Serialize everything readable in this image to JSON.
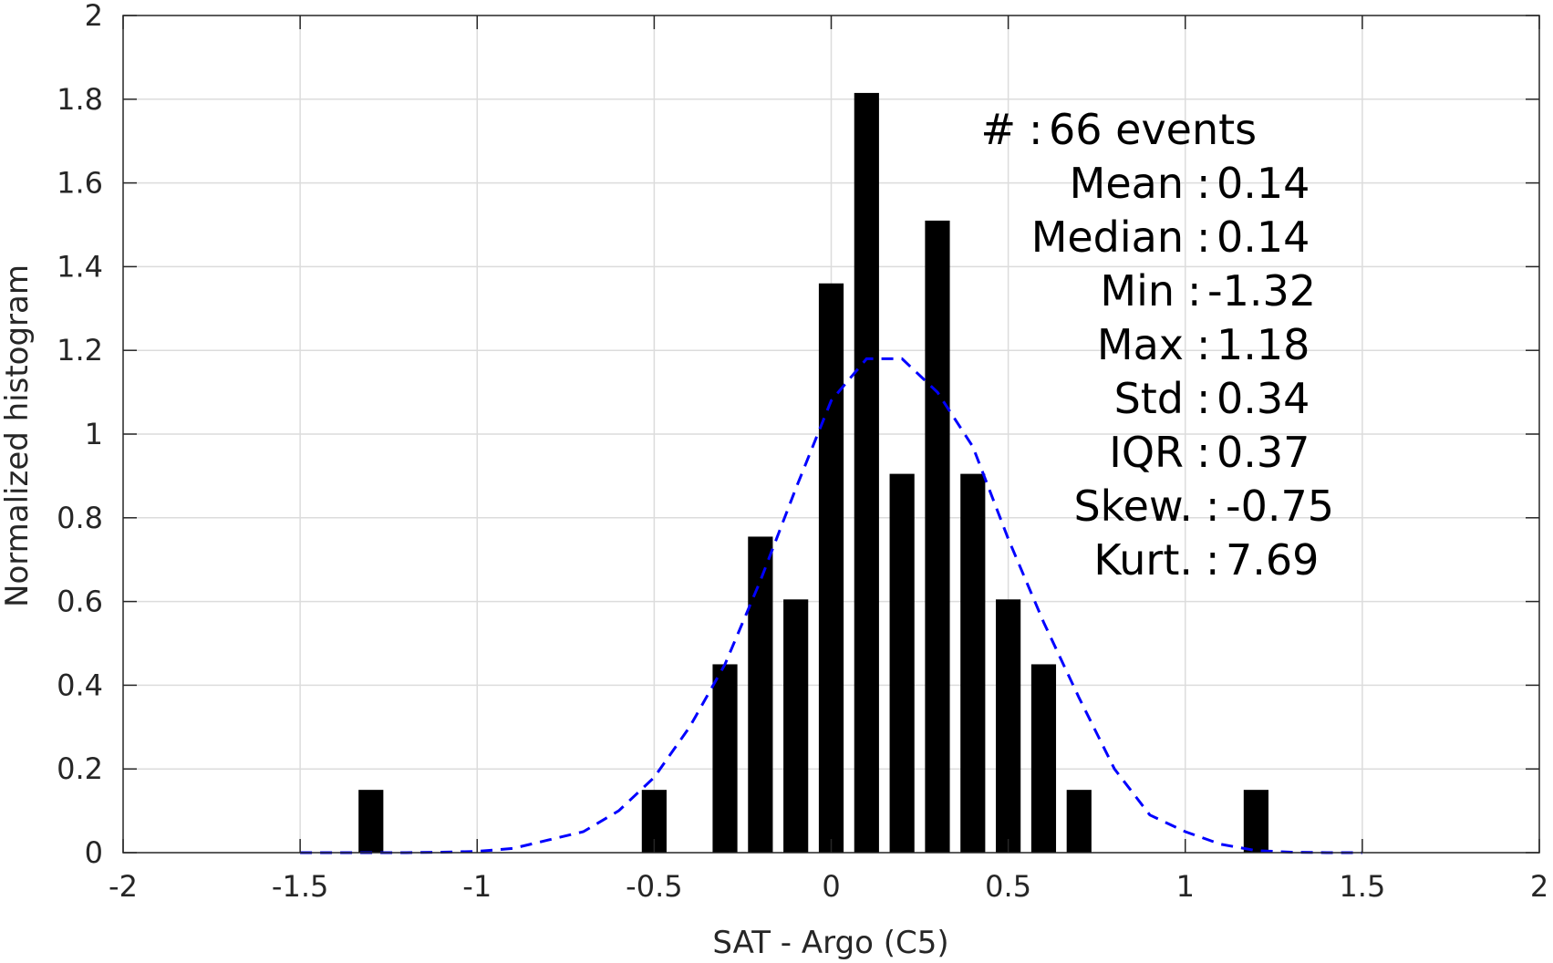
{
  "chart_data": {
    "type": "bar",
    "xlabel": "SAT - Argo (C5)",
    "ylabel": "Normalized histogram",
    "xlim": [
      -2,
      2
    ],
    "ylim": [
      0,
      2
    ],
    "grid": true,
    "x_ticks": [
      "-2",
      "-1.5",
      "-1",
      "-0.5",
      "0",
      "0.5",
      "1",
      "1.5",
      "2"
    ],
    "y_ticks": [
      "0",
      "0.2",
      "0.4",
      "0.6",
      "0.8",
      "1",
      "1.2",
      "1.4",
      "1.6",
      "1.8",
      "2"
    ],
    "bar_width": 0.07,
    "bars": [
      {
        "x": -1.3,
        "value": 0.15
      },
      {
        "x": -0.5,
        "value": 0.15
      },
      {
        "x": -0.3,
        "value": 0.45
      },
      {
        "x": -0.2,
        "value": 0.755
      },
      {
        "x": -0.1,
        "value": 0.605
      },
      {
        "x": 0.0,
        "value": 1.36
      },
      {
        "x": 0.1,
        "value": 1.815
      },
      {
        "x": 0.2,
        "value": 0.905
      },
      {
        "x": 0.3,
        "value": 1.51
      },
      {
        "x": 0.4,
        "value": 0.905
      },
      {
        "x": 0.5,
        "value": 0.605
      },
      {
        "x": 0.6,
        "value": 0.45
      },
      {
        "x": 0.7,
        "value": 0.15
      },
      {
        "x": 1.2,
        "value": 0.15
      }
    ],
    "fit_curve": {
      "color": "#0000ff",
      "style": "dashed",
      "points": [
        [
          -1.5,
          0.0
        ],
        [
          -1.4,
          0.0
        ],
        [
          -1.3,
          0.0
        ],
        [
          -1.2,
          0.0
        ],
        [
          -1.1,
          0.001
        ],
        [
          -1.0,
          0.003
        ],
        [
          -0.9,
          0.01
        ],
        [
          -0.8,
          0.03
        ],
        [
          -0.7,
          0.05
        ],
        [
          -0.6,
          0.1
        ],
        [
          -0.5,
          0.18
        ],
        [
          -0.4,
          0.3
        ],
        [
          -0.3,
          0.45
        ],
        [
          -0.2,
          0.65
        ],
        [
          -0.1,
          0.87
        ],
        [
          0.0,
          1.08
        ],
        [
          0.1,
          1.18
        ],
        [
          0.2,
          1.18
        ],
        [
          0.3,
          1.1
        ],
        [
          0.4,
          0.97
        ],
        [
          0.5,
          0.75
        ],
        [
          0.6,
          0.55
        ],
        [
          0.7,
          0.37
        ],
        [
          0.8,
          0.2
        ],
        [
          0.9,
          0.09
        ],
        [
          1.0,
          0.05
        ],
        [
          1.1,
          0.02
        ],
        [
          1.2,
          0.005
        ],
        [
          1.3,
          0.001
        ],
        [
          1.4,
          0.0
        ],
        [
          1.5,
          0.0
        ]
      ]
    },
    "stats": [
      {
        "label": "#",
        "sep": ":",
        "value": "66 events"
      },
      {
        "label": "Mean",
        "sep": ":",
        "value": "0.14"
      },
      {
        "label": "Median",
        "sep": ":",
        "value": "0.14"
      },
      {
        "label": "Min",
        "sep": ":",
        "value": "-1.32"
      },
      {
        "label": "Max",
        "sep": ":",
        "value": "1.18"
      },
      {
        "label": "Std",
        "sep": ":",
        "value": "0.34"
      },
      {
        "label": "IQR",
        "sep": ":",
        "value": "0.37"
      },
      {
        "label": "Skew.",
        "sep": ":",
        "value": "-0.75"
      },
      {
        "label": "Kurt.",
        "sep": ":",
        "value": "7.69"
      }
    ]
  }
}
